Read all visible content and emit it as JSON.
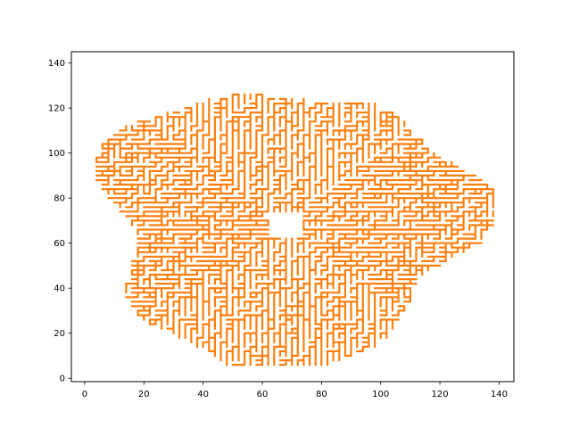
{
  "chart_data": {
    "type": "line",
    "title": "",
    "xlabel": "",
    "ylabel": "",
    "xlim": [
      -4.5,
      145
    ],
    "ylim": [
      -1.5,
      145
    ],
    "xticks": [
      0,
      20,
      40,
      60,
      80,
      100,
      120,
      140
    ],
    "yticks": [
      0,
      20,
      40,
      60,
      80,
      100,
      120,
      140
    ],
    "xtick_labels": [
      "0",
      "20",
      "40",
      "60",
      "80",
      "100",
      "120",
      "140"
    ],
    "ytick_labels": [
      "0",
      "20",
      "40",
      "60",
      "80",
      "100",
      "120",
      "140"
    ],
    "grid": false,
    "legend": "none",
    "series": [
      {
        "color": "#ff7f0e",
        "description": "dense grid maze of orthogonal segments on an integer lattice, roughly disc-shaped",
        "center": [
          68,
          68
        ],
        "hole_radius": 6,
        "x_extent": [
          3,
          138
        ],
        "y_extent": [
          5,
          138
        ]
      }
    ]
  }
}
